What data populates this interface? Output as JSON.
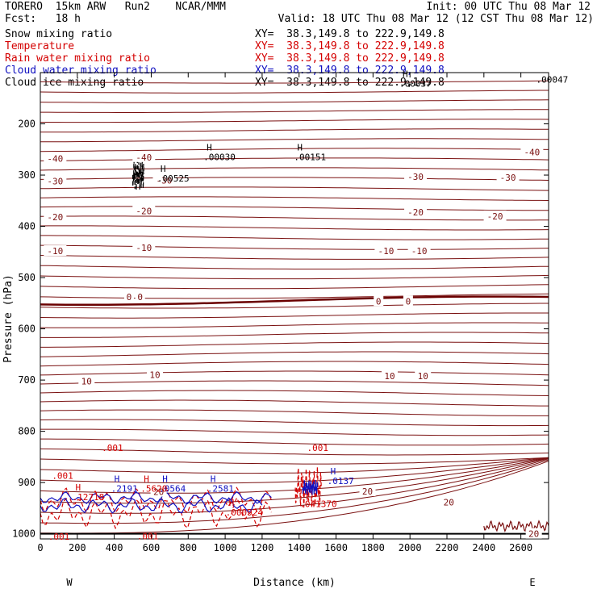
{
  "header": {
    "model": "TORERO  15km ARW   Run2    NCAR/MMM",
    "init": "Init: 00 UTC Thu 08 Mar 12",
    "fcst": "Fcst:   18 h",
    "valid": "Valid: 18 UTC Thu 08 Mar 12 (12 CST Thu 08 Mar 12)"
  },
  "legend": [
    {
      "label": "Snow mixing ratio",
      "xy": "XY=  38.3,149.8 to 222.9,149.8",
      "color": "#000000"
    },
    {
      "label": "Temperature",
      "xy": "XY=  38.3,149.8 to 222.9,149.8",
      "color": "#d40000"
    },
    {
      "label": "Rain water mixing ratio",
      "xy": "XY=  38.3,149.8 to 222.9,149.8",
      "color": "#d40000"
    },
    {
      "label": "Cloud water mixing ratio",
      "xy": "XY=  38.3,149.8 to 222.9,149.8",
      "color": "#1010c0"
    },
    {
      "label": "Cloud ice mixing ratio",
      "xy": "XY=  38.3,149.8 to 222.9,149.8",
      "color": "#000000"
    }
  ],
  "chart_data": {
    "type": "line",
    "xlabel": "Distance (km)",
    "ylabel": "Pressure (hPa)",
    "xlim": [
      0,
      2750
    ],
    "ylim": [
      1000,
      100
    ],
    "x_ticks": [
      0,
      200,
      400,
      600,
      800,
      1000,
      1200,
      1400,
      1600,
      1800,
      2000,
      2200,
      2400,
      2600
    ],
    "y_ticks": [
      200,
      300,
      400,
      500,
      600,
      700,
      800,
      900,
      1000
    ],
    "end_labels": {
      "left": "W",
      "right": "E"
    },
    "temperature_isotherms": [
      {
        "temp": -40,
        "pressure": 255
      },
      {
        "temp": -30,
        "pressure": 300
      },
      {
        "temp": -20,
        "pressure": 360
      },
      {
        "temp": -10,
        "pressure": 430
      },
      {
        "temp": 0,
        "pressure": 545
      },
      {
        "temp": 10,
        "pressure": 690
      },
      {
        "temp": 20,
        "pressure": 915
      }
    ],
    "temperature_labels": [
      {
        "text": "-40",
        "x": 80,
        "p": 268
      },
      {
        "text": "-40",
        "x": 560,
        "p": 265
      },
      {
        "text": "-40",
        "x": 2660,
        "p": 255
      },
      {
        "text": "-30",
        "x": 80,
        "p": 312
      },
      {
        "text": "-30",
        "x": 670,
        "p": 310
      },
      {
        "text": "-30",
        "x": 2030,
        "p": 303
      },
      {
        "text": "-30",
        "x": 2530,
        "p": 305
      },
      {
        "text": "-20",
        "x": 80,
        "p": 382
      },
      {
        "text": "-20",
        "x": 560,
        "p": 370
      },
      {
        "text": "-20",
        "x": 2030,
        "p": 372
      },
      {
        "text": "-20",
        "x": 2460,
        "p": 380
      },
      {
        "text": "-10",
        "x": 80,
        "p": 448
      },
      {
        "text": "-10",
        "x": 560,
        "p": 442
      },
      {
        "text": "-10",
        "x": 1870,
        "p": 448
      },
      {
        "text": "-10",
        "x": 2050,
        "p": 448
      },
      {
        "text": "0",
        "x": 480,
        "p": 538
      },
      {
        "text": "0",
        "x": 540,
        "p": 538
      },
      {
        "text": "0",
        "x": 1830,
        "p": 546
      },
      {
        "text": "0",
        "x": 1990,
        "p": 546
      },
      {
        "text": "10",
        "x": 250,
        "p": 702
      },
      {
        "text": "10",
        "x": 620,
        "p": 690
      },
      {
        "text": "10",
        "x": 1890,
        "p": 692
      },
      {
        "text": "10",
        "x": 2070,
        "p": 692
      },
      {
        "text": "20",
        "x": 2210,
        "p": 938
      },
      {
        "text": "20",
        "x": 1770,
        "p": 917
      },
      {
        "text": "20",
        "x": 640,
        "p": 918
      },
      {
        "text": "20",
        "x": 2670,
        "p": 1000
      }
    ],
    "maxima_labels": [
      {
        "mark": "H",
        "value": ".00030",
        "x": 900,
        "p": 258,
        "color": "#000000"
      },
      {
        "mark": "H",
        "value": ".00151",
        "x": 1390,
        "p": 258,
        "color": "#000000"
      },
      {
        "mark": "H",
        "value": ".00525",
        "x": 650,
        "p": 300,
        "color": "#000000"
      },
      {
        "mark": "H",
        "value": ".00037",
        "x": 1960,
        "p": 115,
        "color": "#000000"
      },
      {
        "mark": "",
        "value": ".00047",
        "x": 2700,
        "p": 107,
        "color": "#000000"
      },
      {
        "mark": "H",
        "value": ".2191",
        "x": 400,
        "p": 905,
        "color": "#1010c0"
      },
      {
        "mark": "H",
        "value": ".0564",
        "x": 660,
        "p": 905,
        "color": "#1010c0"
      },
      {
        "mark": "H",
        "value": ".2581",
        "x": 920,
        "p": 905,
        "color": "#1010c0"
      },
      {
        "mark": "H",
        "value": ".0137",
        "x": 1570,
        "p": 890,
        "color": "#1010c0"
      },
      {
        "mark": "H",
        "value": ".12718",
        "x": 190,
        "p": 922,
        "color": "#d40000"
      },
      {
        "mark": "H",
        "value": ".5620",
        "x": 560,
        "p": 905,
        "color": "#d40000"
      },
      {
        "mark": "H",
        "value": ".000924",
        "x": 1020,
        "p": 952,
        "color": "#d40000"
      },
      {
        "mark": "H",
        "value": ".041370",
        "x": 1420,
        "p": 935,
        "color": "#d40000"
      },
      {
        "mark": "",
        "value": ".001",
        "x": 80,
        "p": 880,
        "color": "#d40000"
      },
      {
        "mark": "",
        "value": ".001",
        "x": 350,
        "p": 826,
        "color": "#d40000"
      },
      {
        "mark": "",
        "value": ".001",
        "x": 1460,
        "p": 826,
        "color": "#d40000"
      },
      {
        "mark": "",
        "value": ".001",
        "x": 60,
        "p": 999,
        "color": "#d40000"
      },
      {
        "mark": "",
        "value": ".001",
        "x": 540,
        "p": 998,
        "color": "#d40000"
      }
    ]
  }
}
